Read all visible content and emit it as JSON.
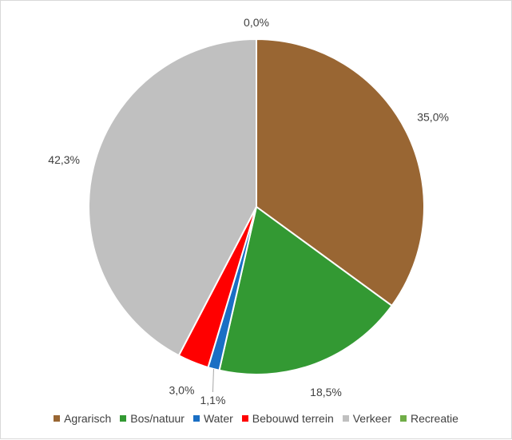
{
  "chart_data": {
    "type": "pie",
    "categories": [
      "Agrarisch",
      "Bos/natuur",
      "Water",
      "Bebouwd terrein",
      "Verkeer",
      "Recreatie"
    ],
    "values": [
      35.0,
      18.5,
      1.1,
      3.0,
      42.3,
      0.0
    ],
    "labels": [
      "35,0%",
      "18,5%",
      "1,1%",
      "3,0%",
      "42,3%",
      "0,0%"
    ],
    "colors": [
      "#996633",
      "#339933",
      "#1a6fc4",
      "#ff0000",
      "#c0c0c0",
      "#70ad47"
    ],
    "legend_position": "bottom",
    "start_angle": "top, clockwise"
  }
}
